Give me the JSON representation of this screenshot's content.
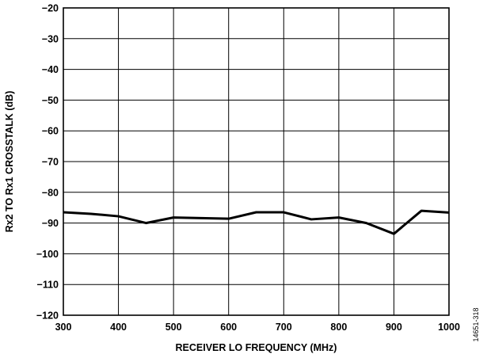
{
  "chart_data": {
    "type": "line",
    "title": "",
    "xlabel": "RECEIVER LO FREQUENCY (MHz)",
    "ylabel": "Rx2 TO Rx1 CROSSTALK (dB)",
    "xlim": [
      300,
      1000
    ],
    "ylim": [
      -120,
      -20
    ],
    "xticks": [
      300,
      400,
      500,
      600,
      700,
      800,
      900,
      1000
    ],
    "yticks": [
      -20,
      -30,
      -40,
      -50,
      -60,
      -70,
      -80,
      -90,
      -100,
      -110,
      -120
    ],
    "xtick_labels": [
      "300",
      "400",
      "500",
      "600",
      "700",
      "800",
      "900",
      "1000"
    ],
    "ytick_labels": [
      "−20",
      "−30",
      "−40",
      "−50",
      "−60",
      "−70",
      "−80",
      "−90",
      "−100",
      "−110",
      "−120"
    ],
    "grid": true,
    "series": [
      {
        "x": [
          300,
          350,
          400,
          450,
          500,
          550,
          600,
          650,
          700,
          750,
          800,
          850,
          900,
          950,
          1000
        ],
        "y": [
          -86.5,
          -87.0,
          -87.8,
          -90.0,
          -88.2,
          -88.4,
          -88.6,
          -86.5,
          -86.5,
          -88.8,
          -88.2,
          -90.0,
          -93.5,
          -86.0,
          -86.6
        ],
        "color": "#000000"
      }
    ],
    "figure_id": "14651-318"
  }
}
